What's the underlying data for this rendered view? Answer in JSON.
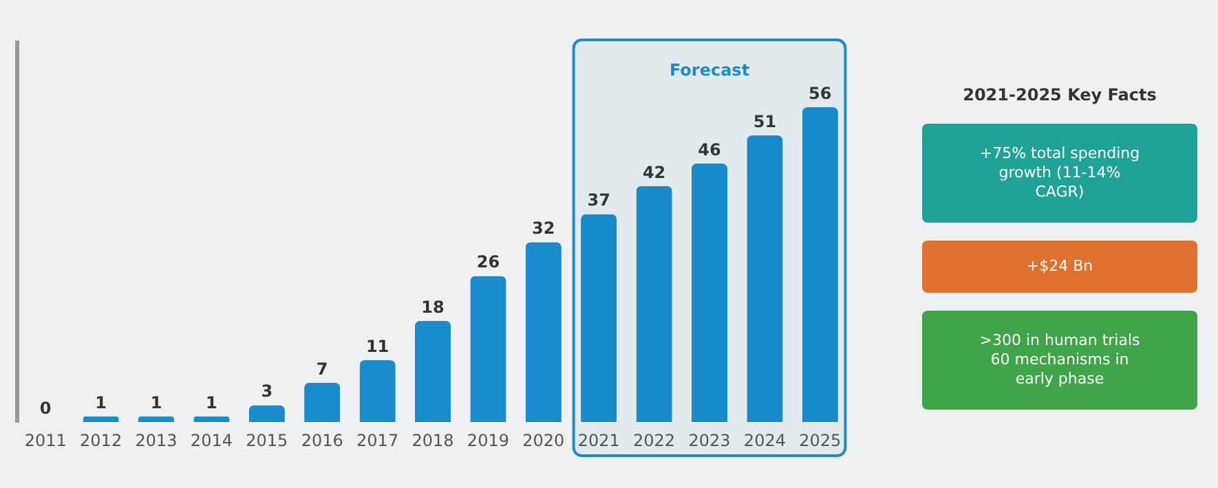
{
  "chart_data": [
    {
      "type": "bar",
      "categories": [
        "2011",
        "2012",
        "2013",
        "2014",
        "2015",
        "2016",
        "2017",
        "2018",
        "2019",
        "2020",
        "2021",
        "2022",
        "2023",
        "2024",
        "2025"
      ],
      "values": [
        0,
        1,
        1,
        1,
        3,
        7,
        11,
        18,
        26,
        32,
        37,
        42,
        46,
        51,
        56
      ],
      "color": "#1a8ccc",
      "data_labels": true,
      "ylim": [
        0,
        68
      ],
      "tick_labels": "x",
      "bands": [
        {
          "axis": "x",
          "from": "2021",
          "to": "2025",
          "label": "Forecast",
          "color": "#1a8ccc"
        }
      ]
    },
    {
      "type": "other",
      "title": "2021-2025 Key Facts",
      "annotations": [
        "+75% total spending growth (11-14% CAGR)",
        "+$24 Bn",
        ">300 in human trials 60 mechanisms in early phase"
      ]
    }
  ]
}
